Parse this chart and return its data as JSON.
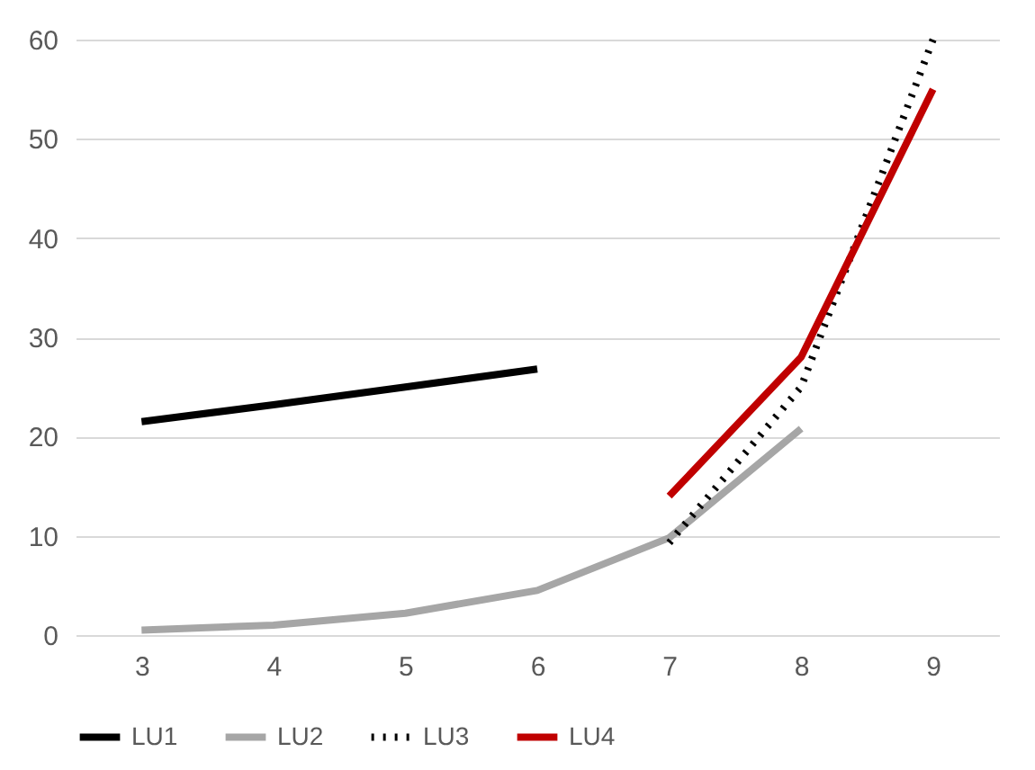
{
  "chart_data": {
    "type": "line",
    "categories": [
      "3",
      "4",
      "5",
      "6",
      "7",
      "8",
      "9"
    ],
    "series": [
      {
        "name": "LU1",
        "color": "#000000",
        "line_style": "solid",
        "values": [
          21.5,
          23.2,
          25,
          26.8,
          null,
          null,
          null
        ]
      },
      {
        "name": "LU2",
        "color": "#a6a6a6",
        "line_style": "solid",
        "values": [
          0.5,
          1,
          2.2,
          4.5,
          9.8,
          20.8,
          null
        ]
      },
      {
        "name": "LU3",
        "color": "#000000",
        "line_style": "dotted",
        "values": [
          null,
          null,
          null,
          null,
          9.3,
          25,
          60
        ]
      },
      {
        "name": "LU4",
        "color": "#c00000",
        "line_style": "solid",
        "values": [
          null,
          null,
          null,
          null,
          14,
          28,
          55
        ]
      }
    ],
    "ylim": [
      0,
      60
    ],
    "yticks": [
      0,
      10,
      20,
      30,
      40,
      50,
      60
    ],
    "grid": "y",
    "legend": "bottom",
    "marker": "none"
  }
}
